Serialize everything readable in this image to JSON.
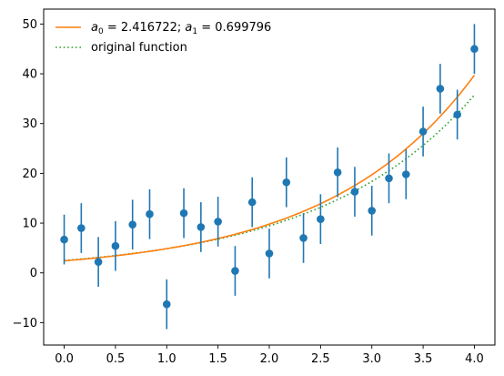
{
  "chart_data": {
    "type": "scatter",
    "title": "",
    "xlabel": "",
    "ylabel": "",
    "xlim": [
      -0.2,
      4.2
    ],
    "ylim": [
      -14.5,
      53
    ],
    "x_ticks": [
      0.0,
      0.5,
      1.0,
      1.5,
      2.0,
      2.5,
      3.0,
      3.5,
      4.0
    ],
    "x_tick_labels": [
      "0.0",
      "0.5",
      "1.0",
      "1.5",
      "2.0",
      "2.5",
      "3.0",
      "3.5",
      "4.0"
    ],
    "y_ticks": [
      -10,
      0,
      10,
      20,
      30,
      40,
      50
    ],
    "y_tick_labels": [
      "−10",
      "0",
      "10",
      "20",
      "30",
      "40",
      "50"
    ],
    "grid": false,
    "legend_position": "top-left",
    "colors": {
      "data": "#1f77b4",
      "fit": "#ff7f0e",
      "original": "#2ca02c"
    },
    "series": [
      {
        "kind": "errorbar",
        "x": [
          0.0,
          0.1667,
          0.3333,
          0.5,
          0.6667,
          0.8333,
          1.0,
          1.1667,
          1.3333,
          1.5,
          1.6667,
          1.8333,
          2.0,
          2.1667,
          2.3333,
          2.5,
          2.6667,
          2.8333,
          3.0,
          3.1667,
          3.3333,
          3.5,
          3.6667,
          3.8333,
          4.0
        ],
        "y": [
          6.7,
          9.0,
          2.2,
          5.4,
          9.7,
          11.8,
          -6.3,
          12.0,
          9.2,
          10.3,
          0.4,
          14.2,
          3.9,
          18.2,
          7.0,
          10.8,
          20.2,
          16.3,
          12.5,
          19.0,
          19.8,
          28.4,
          37.0,
          31.8,
          45.0
        ],
        "yerr": 5
      },
      {
        "kind": "line",
        "name": "a_0 = 2.416722; a_1 = 0.699796",
        "style": "solid",
        "a0": 2.416722,
        "a1": 0.699796
      },
      {
        "kind": "line",
        "name": "original function",
        "style": "dotted",
        "a0": 2.5,
        "a1": 0.665
      }
    ]
  },
  "legend": {
    "fit_prefix_a0": "a",
    "fit_sub_0": "0",
    "fit_mid": " =  2.416722; ",
    "fit_prefix_a1": "a",
    "fit_sub_1": "1",
    "fit_end": " =  0.699796",
    "original_label": "original function"
  }
}
